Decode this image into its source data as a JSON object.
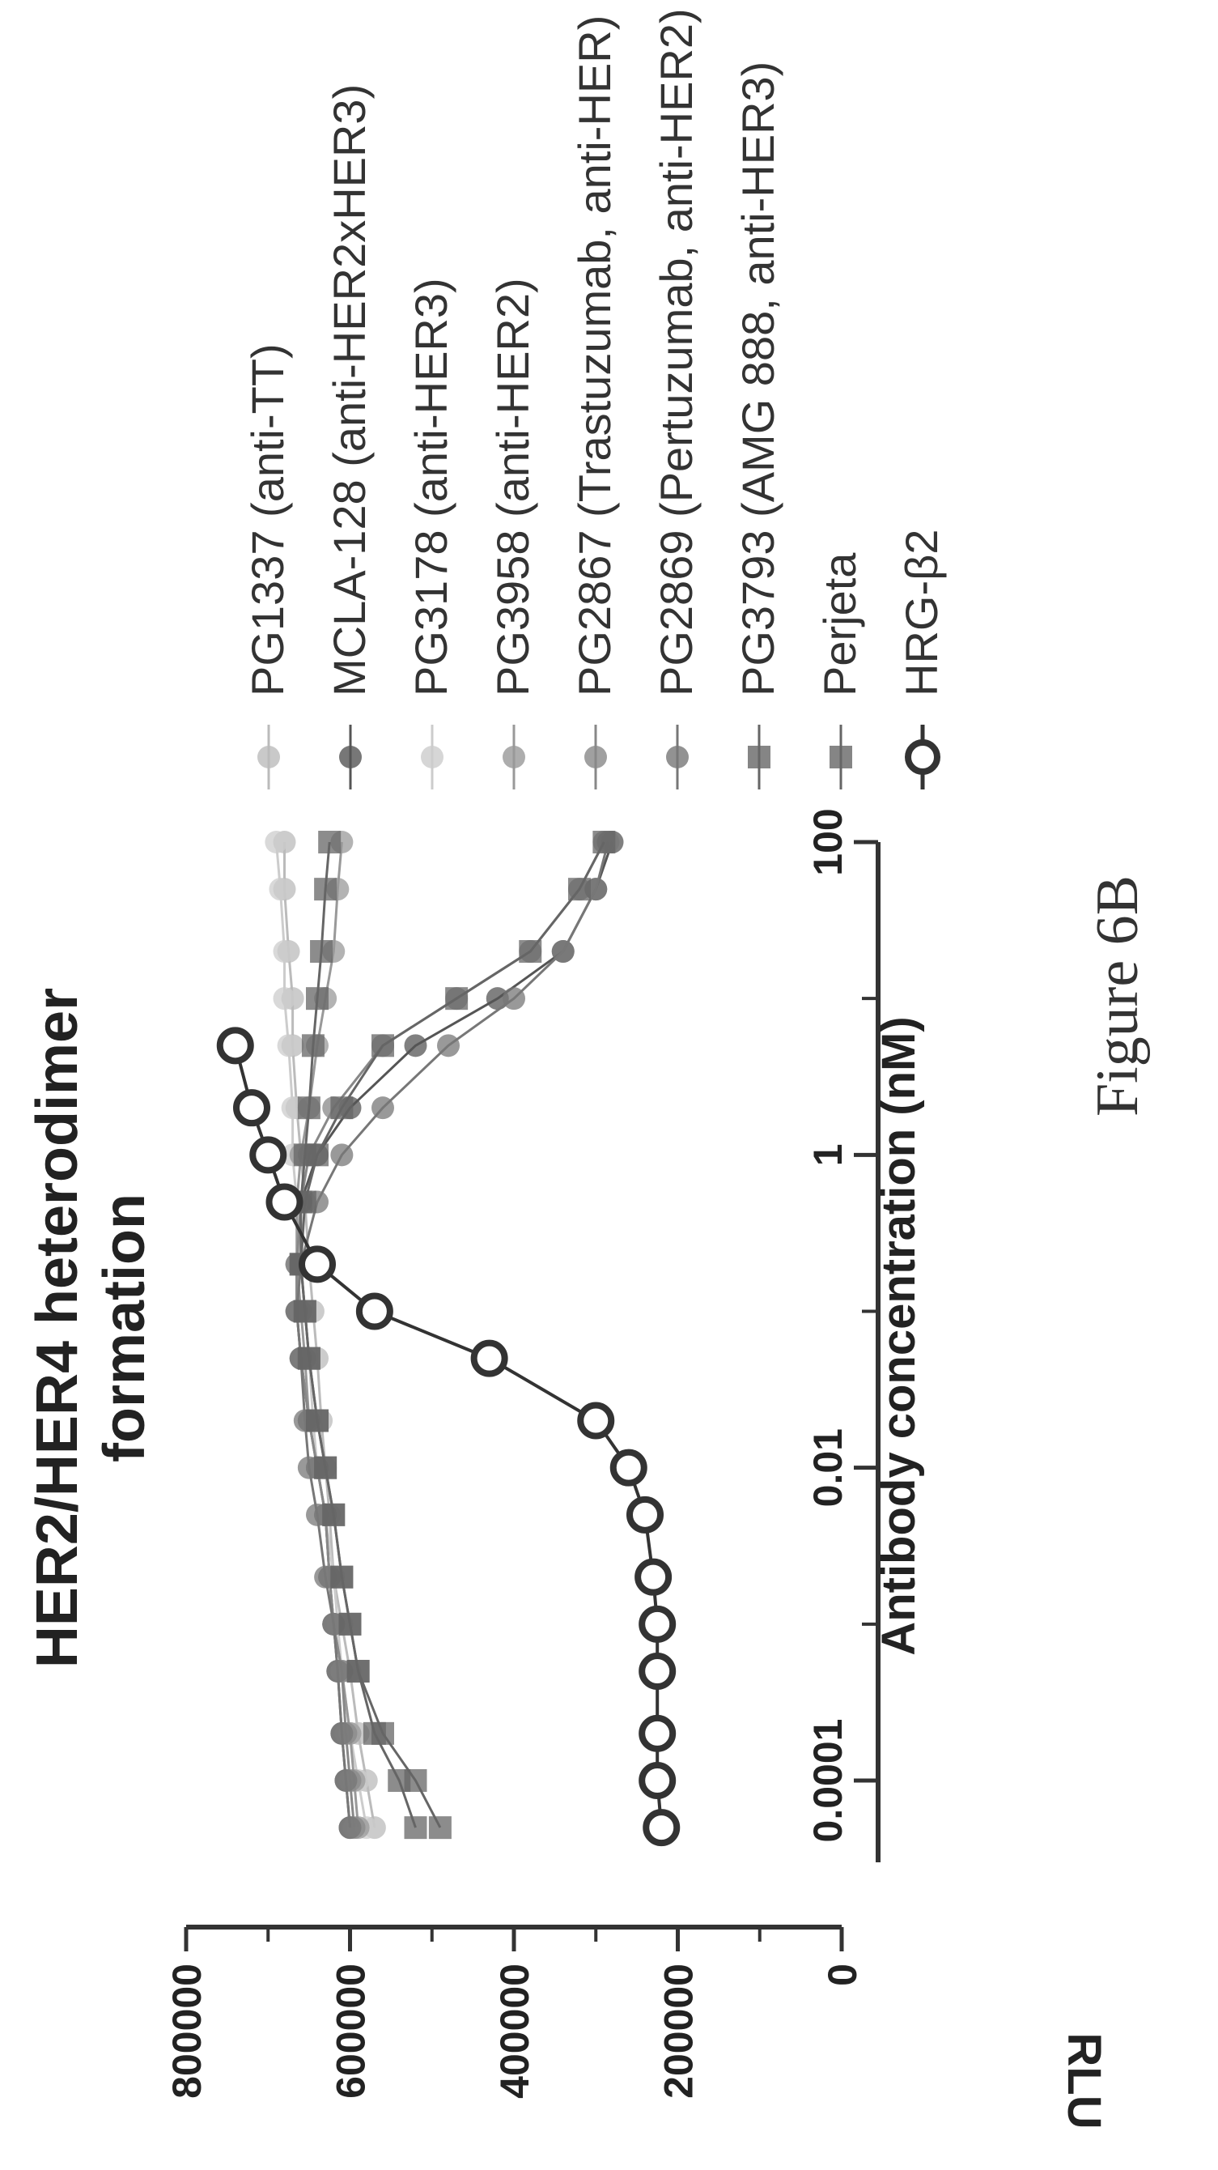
{
  "figure_label": "Figure 6B",
  "chart_data": {
    "type": "line",
    "title": "HER2/HER4 heterodimer formation",
    "title_lines": [
      "HER2/HER4 heterodimer",
      "formation"
    ],
    "xlabel": "Antibody concentration (nM)",
    "ylabel": "RLU",
    "x_scale": "log",
    "xlim": [
      3e-05,
      100
    ],
    "ylim": [
      0,
      800000
    ],
    "x_ticks": [
      0.0001,
      0.01,
      1,
      100
    ],
    "x_tick_labels": [
      "0.0001",
      "0.01",
      "1",
      "100"
    ],
    "y_ticks": [
      0,
      200000,
      400000,
      600000,
      800000
    ],
    "y_tick_labels": [
      "0",
      "200000",
      "400000",
      "600000",
      "800000"
    ],
    "grid": false,
    "legend_position": "right",
    "x": [
      5e-05,
      0.0001,
      0.0002,
      0.0005,
      0.001,
      0.002,
      0.005,
      0.01,
      0.02,
      0.05,
      0.1,
      0.2,
      0.5,
      1,
      2,
      5,
      10,
      20,
      50,
      100
    ],
    "series": [
      {
        "name": "PG1337 (anti-TT)",
        "color": "#bbbbbb",
        "values": [
          570000,
          580000,
          590000,
          600000,
          610000,
          620000,
          625000,
          630000,
          635000,
          640000,
          645000,
          650000,
          655000,
          660000,
          665000,
          670000,
          670000,
          675000,
          680000,
          680000
        ]
      },
      {
        "name": "MCLA-128 (anti-HER2xHER3)",
        "color": "#555555",
        "values": [
          600000,
          605000,
          610000,
          615000,
          620000,
          625000,
          630000,
          640000,
          650000,
          660000,
          665000,
          665000,
          660000,
          640000,
          600000,
          520000,
          420000,
          340000,
          300000,
          280000
        ]
      },
      {
        "name": "PG3178 (anti-HER3)",
        "color": "#cccccc",
        "values": [
          580000,
          590000,
          600000,
          610000,
          615000,
          620000,
          630000,
          640000,
          645000,
          650000,
          655000,
          660000,
          665000,
          670000,
          670000,
          675000,
          680000,
          680000,
          685000,
          690000
        ]
      },
      {
        "name": "PG3958 (anti-HER2)",
        "color": "#999999",
        "values": [
          590000,
          595000,
          600000,
          610000,
          620000,
          625000,
          630000,
          640000,
          650000,
          655000,
          660000,
          665000,
          665000,
          660000,
          650000,
          640000,
          630000,
          620000,
          615000,
          610000
        ]
      },
      {
        "name": "PG2867 (Trastuzumab, anti-HER)",
        "color": "#888888",
        "values": [
          595000,
          600000,
          605000,
          610000,
          620000,
          625000,
          630000,
          640000,
          650000,
          660000,
          665000,
          665000,
          660000,
          650000,
          620000,
          560000,
          470000,
          380000,
          320000,
          290000
        ]
      },
      {
        "name": "PG2869 (Pertuzumab, anti-HER2)",
        "color": "#777777",
        "values": [
          600000,
          605000,
          610000,
          615000,
          620000,
          630000,
          640000,
          650000,
          655000,
          660000,
          665000,
          660000,
          640000,
          610000,
          560000,
          480000,
          400000,
          340000,
          300000,
          285000
        ]
      },
      {
        "name": "PG3793 (AMG 888, anti-HER3)",
        "color": "#666666",
        "values": [
          490000,
          520000,
          560000,
          590000,
          600000,
          610000,
          620000,
          630000,
          640000,
          650000,
          655000,
          660000,
          660000,
          655000,
          650000,
          645000,
          640000,
          635000,
          630000,
          625000
        ]
      },
      {
        "name": "Perjeta",
        "color": "#666666",
        "values": [
          520000,
          540000,
          570000,
          590000,
          600000,
          610000,
          620000,
          630000,
          640000,
          650000,
          655000,
          660000,
          655000,
          640000,
          610000,
          560000,
          470000,
          380000,
          320000,
          290000
        ]
      },
      {
        "name": "HRG-β2",
        "color": "#333333",
        "values": [
          220000,
          225000,
          225000,
          225000,
          225000,
          230000,
          240000,
          260000,
          300000,
          430000,
          570000,
          640000,
          680000,
          700000,
          720000,
          740000,
          null,
          null,
          null,
          null
        ]
      }
    ]
  }
}
